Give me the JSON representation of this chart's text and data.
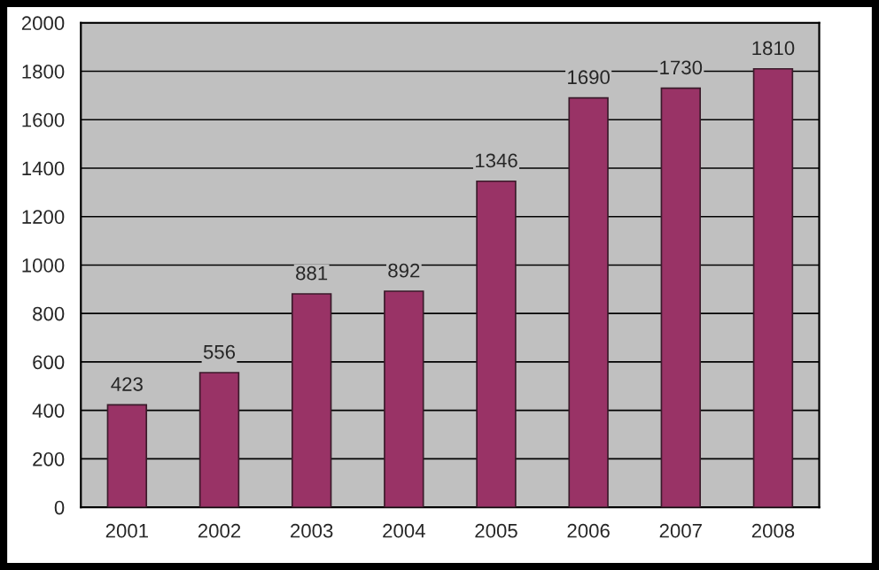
{
  "chart_data": {
    "type": "bar",
    "categories": [
      "2001",
      "2002",
      "2003",
      "2004",
      "2005",
      "2006",
      "2007",
      "2008"
    ],
    "values": [
      423,
      556,
      881,
      892,
      1346,
      1690,
      1730,
      1810
    ],
    "color": "#993366",
    "ylim": [
      0,
      2000
    ],
    "yticks": [
      0,
      200,
      400,
      600,
      800,
      1000,
      1200,
      1400,
      1600,
      1800,
      2000
    ],
    "grid": "y",
    "data_labels": true,
    "legend": false
  }
}
